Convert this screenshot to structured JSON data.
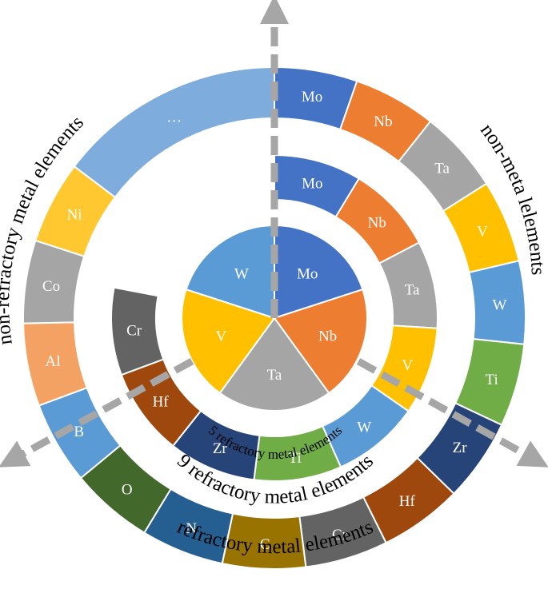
{
  "colors": {
    "blue_dark": "#4472C4",
    "blue_light": "#5B9BD5",
    "blue_pale": "#7EACDC",
    "orange": "#ED7D31",
    "orange_light": "#F4A264",
    "gray": "#A5A5A5",
    "gold": "#FFC000",
    "yellow": "#FFC830",
    "green": "#70AD47",
    "navy": "#264478",
    "brown": "#9E480E",
    "charcoal": "#636363",
    "darkgreen": "#43682B",
    "steel": "#255E91",
    "olive": "#997300",
    "arrow": "#A6A6A6"
  },
  "core": {
    "caption": "5 refractory metal elements",
    "segments": [
      {
        "label": "Mo",
        "color": "blue_dark"
      },
      {
        "label": "Nb",
        "color": "orange"
      },
      {
        "label": "Ta",
        "color": "gray"
      },
      {
        "label": "V",
        "color": "gold"
      },
      {
        "label": "W",
        "color": "blue_light"
      }
    ]
  },
  "middle_ring": {
    "caption": "9 refractory metal elements",
    "segments": [
      {
        "label": "Mo",
        "color": "blue_dark"
      },
      {
        "label": "Nb",
        "color": "orange"
      },
      {
        "label": "Ta",
        "color": "gray"
      },
      {
        "label": "V",
        "color": "gold"
      },
      {
        "label": "W",
        "color": "blue_light"
      },
      {
        "label": "Ti",
        "color": "green"
      },
      {
        "label": "Zr",
        "color": "navy"
      },
      {
        "label": "Hf",
        "color": "brown"
      },
      {
        "label": "Cr",
        "color": "charcoal"
      }
    ]
  },
  "outer_ring": {
    "captions": {
      "right": "non-meta lelements",
      "left": "non-refractory metal elements",
      "bottom": "refractory metal elements"
    },
    "segments": [
      {
        "label": "Mo",
        "color": "blue_dark"
      },
      {
        "label": "Nb",
        "color": "orange"
      },
      {
        "label": "Ta",
        "color": "gray"
      },
      {
        "label": "V",
        "color": "gold"
      },
      {
        "label": "W",
        "color": "blue_light"
      },
      {
        "label": "Ti",
        "color": "green"
      },
      {
        "label": "Zr",
        "color": "navy"
      },
      {
        "label": "Hf",
        "color": "brown"
      },
      {
        "label": "Cr",
        "color": "charcoal"
      },
      {
        "label": "C",
        "color": "olive"
      },
      {
        "label": "N",
        "color": "steel"
      },
      {
        "label": "O",
        "color": "darkgreen"
      },
      {
        "label": "B",
        "color": "blue_light"
      },
      {
        "label": "Al",
        "color": "orange_light"
      },
      {
        "label": "Co",
        "color": "gray"
      },
      {
        "label": "Ni",
        "color": "yellow"
      },
      {
        "label": "…",
        "color": "blue_pale"
      }
    ]
  }
}
